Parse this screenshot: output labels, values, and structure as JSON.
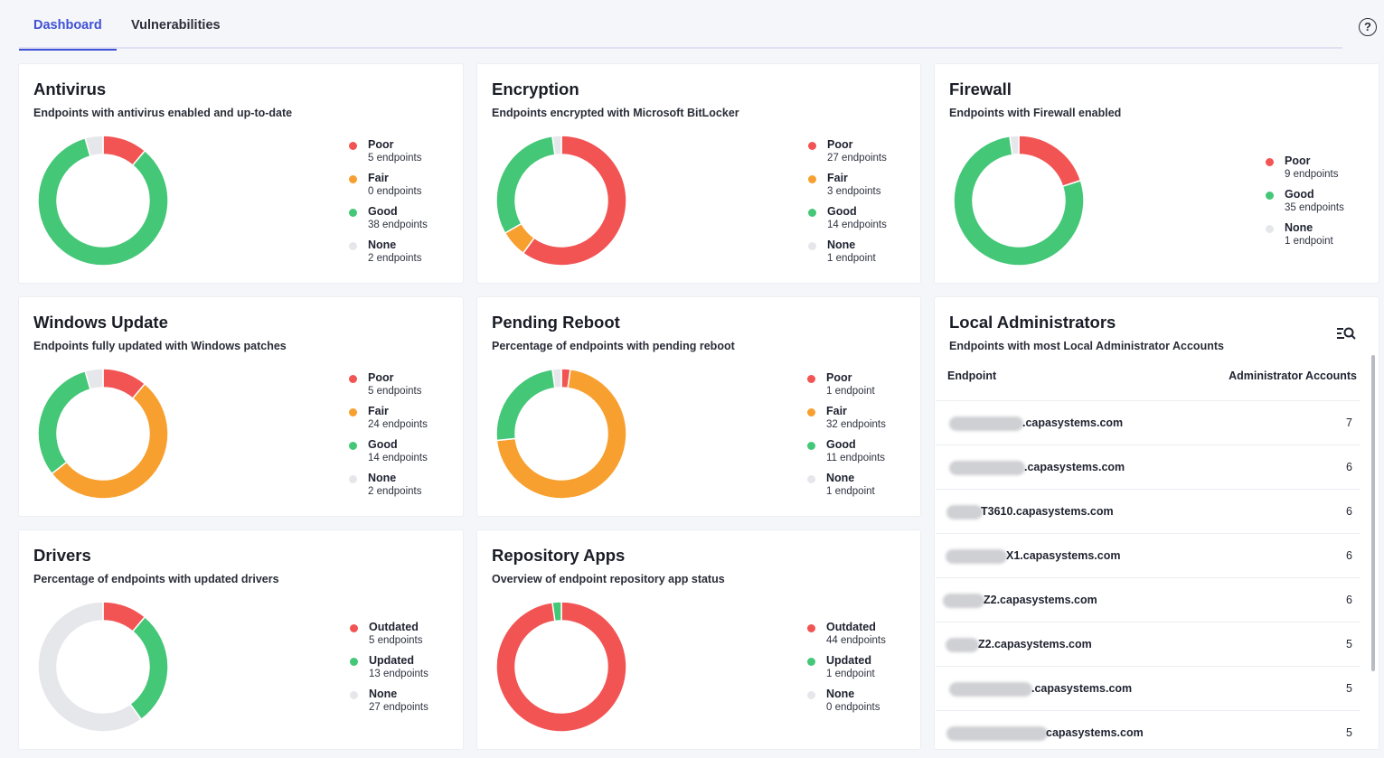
{
  "tabs": [
    {
      "label": "Dashboard",
      "active": true
    },
    {
      "label": "Vulnerabilities",
      "active": false
    }
  ],
  "help_icon": "?",
  "colors": {
    "poor": "#f25454",
    "fair": "#f7a030",
    "good": "#44c777",
    "none": "#e6e7eb",
    "accent": "#3f51d4"
  },
  "cards": {
    "antivirus": {
      "title": "Antivirus",
      "subtitle": "Endpoints with antivirus enabled and up-to-date",
      "segments": [
        {
          "label": "Poor",
          "count": "5 endpoints",
          "value": 5,
          "color": "#f25454"
        },
        {
          "label": "Fair",
          "count": "0 endpoints",
          "value": 0,
          "color": "#f7a030"
        },
        {
          "label": "Good",
          "count": "38 endpoints",
          "value": 38,
          "color": "#44c777"
        },
        {
          "label": "None",
          "count": "2 endpoints",
          "value": 2,
          "color": "#e6e7eb"
        }
      ]
    },
    "encryption": {
      "title": "Encryption",
      "subtitle": "Endpoints encrypted with Microsoft BitLocker",
      "segments": [
        {
          "label": "Poor",
          "count": "27 endpoints",
          "value": 27,
          "color": "#f25454"
        },
        {
          "label": "Fair",
          "count": "3 endpoints",
          "value": 3,
          "color": "#f7a030"
        },
        {
          "label": "Good",
          "count": "14 endpoints",
          "value": 14,
          "color": "#44c777"
        },
        {
          "label": "None",
          "count": "1 endpoint",
          "value": 1,
          "color": "#e6e7eb"
        }
      ]
    },
    "firewall": {
      "title": "Firewall",
      "subtitle": "Endpoints with Firewall enabled",
      "segments": [
        {
          "label": "Poor",
          "count": "9 endpoints",
          "value": 9,
          "color": "#f25454"
        },
        {
          "label": "Good",
          "count": "35 endpoints",
          "value": 35,
          "color": "#44c777"
        },
        {
          "label": "None",
          "count": "1 endpoint",
          "value": 1,
          "color": "#e6e7eb"
        }
      ]
    },
    "windows_update": {
      "title": "Windows Update",
      "subtitle": "Endpoints fully updated with Windows patches",
      "segments": [
        {
          "label": "Poor",
          "count": "5 endpoints",
          "value": 5,
          "color": "#f25454"
        },
        {
          "label": "Fair",
          "count": "24 endpoints",
          "value": 24,
          "color": "#f7a030"
        },
        {
          "label": "Good",
          "count": "14 endpoints",
          "value": 14,
          "color": "#44c777"
        },
        {
          "label": "None",
          "count": "2 endpoints",
          "value": 2,
          "color": "#e6e7eb"
        }
      ]
    },
    "pending_reboot": {
      "title": "Pending Reboot",
      "subtitle": "Percentage of endpoints with pending reboot",
      "segments": [
        {
          "label": "Poor",
          "count": "1 endpoint",
          "value": 1,
          "color": "#f25454"
        },
        {
          "label": "Fair",
          "count": "32 endpoints",
          "value": 32,
          "color": "#f7a030"
        },
        {
          "label": "Good",
          "count": "11 endpoints",
          "value": 11,
          "color": "#44c777"
        },
        {
          "label": "None",
          "count": "1 endpoint",
          "value": 1,
          "color": "#e6e7eb"
        }
      ]
    },
    "drivers": {
      "title": "Drivers",
      "subtitle": "Percentage of endpoints with updated drivers",
      "segments": [
        {
          "label": "Outdated",
          "count": "5 endpoints",
          "value": 5,
          "color": "#f25454"
        },
        {
          "label": "Updated",
          "count": "13 endpoints",
          "value": 13,
          "color": "#44c777"
        },
        {
          "label": "None",
          "count": "27 endpoints",
          "value": 27,
          "color": "#e6e7eb"
        }
      ]
    },
    "repository_apps": {
      "title": "Repository Apps",
      "subtitle": "Overview of endpoint repository app status",
      "segments": [
        {
          "label": "Outdated",
          "count": "44 endpoints",
          "value": 44,
          "color": "#f25454"
        },
        {
          "label": "Updated",
          "count": "1 endpoint",
          "value": 1,
          "color": "#44c777"
        },
        {
          "label": "None",
          "count": "0 endpoints",
          "value": 0,
          "color": "#e6e7eb"
        }
      ]
    }
  },
  "local_admins": {
    "title": "Local Administrators",
    "subtitle": "Endpoints with most Local Administrator Accounts",
    "search_icon": "list-search-icon",
    "col_endpoint": "Endpoint",
    "col_accounts": "Administrator Accounts",
    "rows": [
      {
        "host": ".capasystems.com",
        "accounts": "7"
      },
      {
        "host": ".capasystems.com",
        "accounts": "6"
      },
      {
        "host": "T3610.capasystems.com",
        "accounts": "6"
      },
      {
        "host": "X1.capasystems.com",
        "accounts": "6"
      },
      {
        "host": "Z2.capasystems.com",
        "accounts": "6"
      },
      {
        "host": "Z2.capasystems.com",
        "accounts": "5"
      },
      {
        "host": ".capasystems.com",
        "accounts": "5"
      },
      {
        "host": "capasystems.com",
        "accounts": "5"
      }
    ]
  }
}
